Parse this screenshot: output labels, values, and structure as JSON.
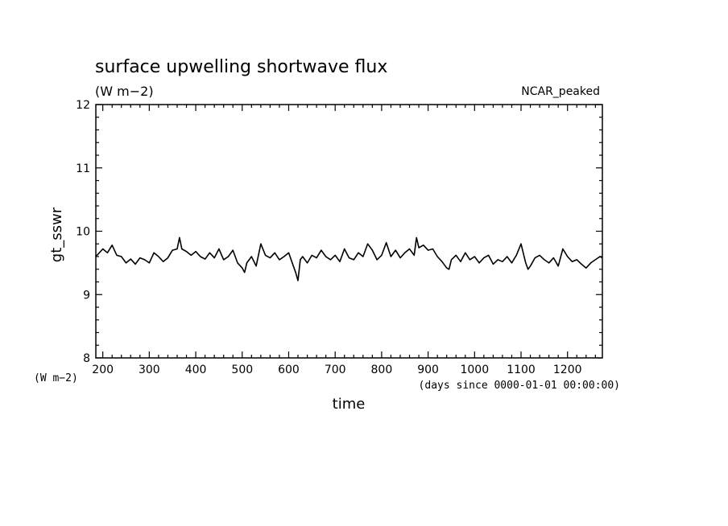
{
  "chart_data": {
    "type": "line",
    "title": "surface upwelling shortwave flux",
    "units": "(W m−2)",
    "dataset_label": "NCAR_peaked",
    "ylabel": "gt_sswr",
    "y_units_label": "(W m−2)",
    "xlabel": "time",
    "x_units_label": "(days since 0000-01-01 00:00:00)",
    "xlim": [
      185,
      1275
    ],
    "ylim": [
      8,
      12
    ],
    "x_ticks": [
      200,
      300,
      400,
      500,
      600,
      700,
      800,
      900,
      1000,
      1100,
      1200
    ],
    "y_ticks": [
      8,
      9,
      10,
      11,
      12
    ],
    "grid": false,
    "line_color": "#000000",
    "series": [
      {
        "x": [
          185,
          200,
          210,
          220,
          230,
          240,
          250,
          260,
          270,
          280,
          290,
          300,
          310,
          320,
          330,
          340,
          350,
          360,
          365,
          370,
          380,
          390,
          400,
          410,
          420,
          430,
          440,
          450,
          460,
          470,
          480,
          490,
          500,
          505,
          510,
          520,
          530,
          540,
          550,
          560,
          570,
          580,
          590,
          600,
          610,
          615,
          620,
          625,
          630,
          640,
          650,
          660,
          670,
          680,
          690,
          700,
          710,
          720,
          730,
          740,
          750,
          760,
          770,
          780,
          790,
          800,
          810,
          820,
          830,
          840,
          850,
          860,
          870,
          875,
          880,
          890,
          900,
          910,
          920,
          930,
          940,
          945,
          950,
          960,
          970,
          980,
          990,
          1000,
          1010,
          1020,
          1030,
          1040,
          1050,
          1060,
          1070,
          1080,
          1090,
          1100,
          1110,
          1115,
          1120,
          1130,
          1140,
          1150,
          1160,
          1170,
          1180,
          1190,
          1200,
          1210,
          1220,
          1230,
          1240,
          1250,
          1260,
          1270,
          1275
        ],
        "y": [
          9.6,
          9.72,
          9.66,
          9.78,
          9.62,
          9.6,
          9.5,
          9.56,
          9.48,
          9.58,
          9.55,
          9.5,
          9.66,
          9.6,
          9.52,
          9.58,
          9.7,
          9.72,
          9.9,
          9.72,
          9.68,
          9.62,
          9.68,
          9.6,
          9.56,
          9.66,
          9.58,
          9.72,
          9.55,
          9.6,
          9.7,
          9.5,
          9.42,
          9.35,
          9.5,
          9.6,
          9.45,
          9.8,
          9.62,
          9.58,
          9.66,
          9.55,
          9.6,
          9.66,
          9.45,
          9.35,
          9.22,
          9.55,
          9.6,
          9.5,
          9.62,
          9.58,
          9.7,
          9.6,
          9.55,
          9.62,
          9.52,
          9.72,
          9.58,
          9.55,
          9.66,
          9.6,
          9.8,
          9.7,
          9.55,
          9.62,
          9.82,
          9.6,
          9.7,
          9.58,
          9.66,
          9.72,
          9.62,
          9.9,
          9.74,
          9.78,
          9.7,
          9.72,
          9.6,
          9.52,
          9.42,
          9.4,
          9.55,
          9.62,
          9.52,
          9.66,
          9.55,
          9.6,
          9.5,
          9.58,
          9.62,
          9.48,
          9.55,
          9.52,
          9.6,
          9.5,
          9.62,
          9.8,
          9.5,
          9.4,
          9.45,
          9.58,
          9.62,
          9.55,
          9.5,
          9.58,
          9.45,
          9.72,
          9.6,
          9.52,
          9.55,
          9.48,
          9.42,
          9.5,
          9.55,
          9.6,
          9.58
        ]
      }
    ]
  }
}
